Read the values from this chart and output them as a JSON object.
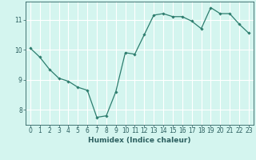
{
  "x": [
    0,
    1,
    2,
    3,
    4,
    5,
    6,
    7,
    8,
    9,
    10,
    11,
    12,
    13,
    14,
    15,
    16,
    17,
    18,
    19,
    20,
    21,
    22,
    23
  ],
  "y": [
    10.05,
    9.75,
    9.35,
    9.05,
    8.95,
    8.75,
    8.65,
    7.75,
    7.8,
    8.6,
    9.9,
    9.85,
    10.5,
    11.15,
    11.2,
    11.1,
    11.1,
    10.95,
    10.7,
    11.4,
    11.2,
    11.2,
    10.85,
    10.55
  ],
  "xlabel": "Humidex (Indice chaleur)",
  "ylim": [
    7.5,
    11.6
  ],
  "xlim": [
    -0.5,
    23.5
  ],
  "yticks": [
    8,
    9,
    10,
    11
  ],
  "xticks": [
    0,
    1,
    2,
    3,
    4,
    5,
    6,
    7,
    8,
    9,
    10,
    11,
    12,
    13,
    14,
    15,
    16,
    17,
    18,
    19,
    20,
    21,
    22,
    23
  ],
  "line_color": "#2d7d6e",
  "marker": "D",
  "marker_size": 1.8,
  "bg_color": "#d4f5ef",
  "grid_color": "#ffffff",
  "tick_color": "#2d6060",
  "label_color": "#2d6060",
  "tick_fontsize": 5.5,
  "xlabel_fontsize": 6.5
}
